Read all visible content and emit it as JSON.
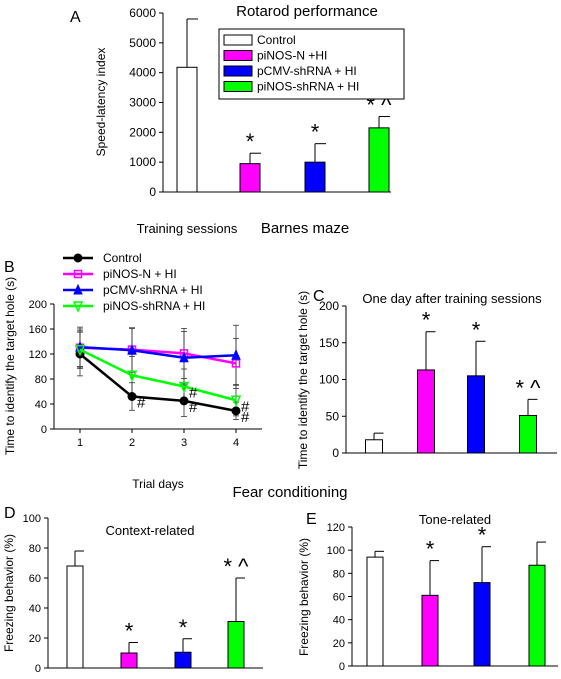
{
  "figure": {
    "section_barnes": "Barnes maze",
    "section_fear": "Fear conditioning"
  },
  "chart_data": [
    {
      "panel": "A",
      "type": "bar",
      "title": "Rotarod performance",
      "xlabel": "",
      "ylabel": "Speed-latency index",
      "ylim": [
        0,
        6000
      ],
      "yticks": [
        0,
        1000,
        2000,
        3000,
        4000,
        5000,
        6000
      ],
      "categories": [
        "Control",
        "piNOS-N +HI",
        "pCMV-shRNA + HI",
        "piNOS-shRNA + HI"
      ],
      "values": [
        4180,
        950,
        1000,
        2150
      ],
      "errors": [
        1620,
        350,
        620,
        380
      ],
      "colors": [
        "#ffffff",
        "#ff00ff",
        "#0000ff",
        "#00ff00"
      ],
      "marks": [
        "",
        "*",
        "*",
        "* ^"
      ],
      "legend": [
        "Control",
        "piNOS-N +HI",
        "pCMV-shRNA + HI",
        "piNOS-shRNA + HI"
      ],
      "legend_position": "top-right",
      "grid": false
    },
    {
      "panel": "B",
      "type": "line",
      "title": "Training sessions",
      "xlabel": "Trial days",
      "ylabel": "Time to identify the target hole (s)",
      "x": [
        1,
        2,
        3,
        4
      ],
      "xlim": [
        0.5,
        4.5
      ],
      "ylim": [
        0,
        200
      ],
      "yticks": [
        0,
        40,
        80,
        120,
        160,
        200
      ],
      "series": [
        {
          "name": "Control",
          "color": "#000000",
          "marker": "circle",
          "values": [
            120,
            52,
            45,
            29
          ],
          "errors": [
            35,
            22,
            25,
            14
          ],
          "marks": [
            "",
            "#",
            "#",
            "#"
          ]
        },
        {
          "name": "piNOS-N + HI",
          "color": "#ff00ff",
          "marker": "square",
          "values": [
            130,
            127,
            121,
            105
          ],
          "errors": [
            30,
            35,
            40,
            40
          ],
          "marks": [
            "",
            "",
            "",
            ""
          ]
        },
        {
          "name": "pCMV-shRNA + HI",
          "color": "#0000ff",
          "marker": "triangle-up",
          "values": [
            131,
            126,
            114,
            118
          ],
          "errors": [
            32,
            35,
            42,
            48
          ],
          "marks": [
            "",
            "",
            "",
            ""
          ]
        },
        {
          "name": "piNOS-shRNA + HI",
          "color": "#00ff00",
          "marker": "triangle-down",
          "values": [
            127,
            86,
            68,
            46
          ],
          "errors": [
            30,
            30,
            28,
            25
          ],
          "marks": [
            "",
            "",
            "#",
            "#"
          ]
        }
      ],
      "legend_position": "top-left",
      "grid": false
    },
    {
      "panel": "C",
      "type": "bar",
      "title": "One day after training sessions",
      "xlabel": "",
      "ylabel": "Time to identify the target hole (s)",
      "ylim": [
        0,
        200
      ],
      "yticks": [
        0,
        50,
        100,
        150,
        200
      ],
      "categories": [
        "Control",
        "piNOS-N + HI",
        "pCMV-shRNA + HI",
        "piNOS-shRNA + HI"
      ],
      "values": [
        18,
        113,
        105,
        51
      ],
      "errors": [
        9,
        52,
        47,
        22
      ],
      "colors": [
        "#ffffff",
        "#ff00ff",
        "#0000ff",
        "#00ff00"
      ],
      "marks": [
        "",
        "*",
        "*",
        "* ^"
      ],
      "grid": false
    },
    {
      "panel": "D",
      "type": "bar",
      "title": "Context-related",
      "xlabel": "",
      "ylabel": "Freezing behavior (%)",
      "ylim": [
        0,
        100
      ],
      "yticks": [
        0,
        20,
        40,
        60,
        80,
        100
      ],
      "categories": [
        "Control",
        "piNOS-N + HI",
        "pCMV-shRNA + HI",
        "piNOS-shRNA + HI"
      ],
      "values": [
        68,
        10,
        10.5,
        31
      ],
      "errors": [
        10,
        7,
        9,
        29
      ],
      "colors": [
        "#ffffff",
        "#ff00ff",
        "#0000ff",
        "#00ff00"
      ],
      "marks": [
        "",
        "*",
        "*",
        "* ^"
      ],
      "grid": false
    },
    {
      "panel": "E",
      "type": "bar",
      "title": "Tone-related",
      "xlabel": "",
      "ylabel": "Freezing behavior (%)",
      "ylim": [
        0,
        120
      ],
      "yticks": [
        0,
        20,
        40,
        60,
        80,
        100,
        120
      ],
      "categories": [
        "Control",
        "piNOS-N + HI",
        "pCMV-shRNA + HI",
        "piNOS-shRNA + HI"
      ],
      "values": [
        94,
        61,
        72,
        87
      ],
      "errors": [
        5,
        30,
        31,
        20
      ],
      "colors": [
        "#ffffff",
        "#ff00ff",
        "#0000ff",
        "#00ff00"
      ],
      "marks": [
        "",
        "*",
        "*",
        ""
      ],
      "grid": false
    }
  ]
}
